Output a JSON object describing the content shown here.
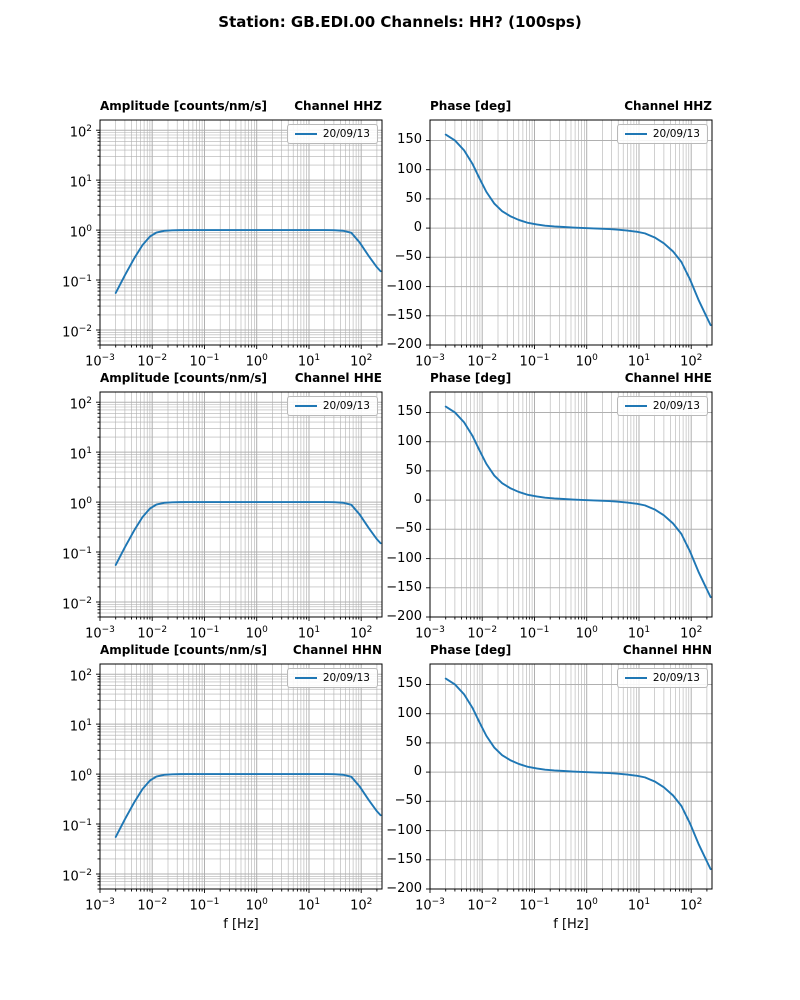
{
  "figure": {
    "title": "Station: GB.EDI.00 Channels: HH? (100sps)"
  },
  "style": {
    "line_color": "#1f77b4",
    "grid_color": "#b0b0b0",
    "spine_color": "#000000",
    "legend_border": "#b9b9b9",
    "background": "#ffffff"
  },
  "legend_label": "20/09/13",
  "xlabel": "f [Hz]",
  "channel_titles": [
    "Channel HHZ",
    "Channel HHE",
    "Channel HHN"
  ],
  "chart_data": {
    "type": "line",
    "layout": "3 rows (channels HHZ, HHE, HHN) x 2 columns (Amplitude log-log, Phase semilog-x); major+minor gridlines on; legend upper right in every panel",
    "channels": [
      "HHZ",
      "HHE",
      "HHN"
    ],
    "note": "All three channels show an identical instrument response curve labelled 20/09/13",
    "amplitude": {
      "title": "Amplitude [counts/nm/s]",
      "xscale": "log",
      "yscale": "log",
      "xlim": [
        0.001,
        250
      ],
      "ylim": [
        0.005,
        160
      ],
      "xtick_exponents": [
        -3,
        -2,
        -1,
        0,
        1,
        2
      ],
      "ytick_exponents": [
        2,
        1,
        0,
        -1,
        -2
      ]
    },
    "phase": {
      "title": "Phase [deg]",
      "xscale": "log",
      "yscale": "linear",
      "xlim": [
        0.001,
        250
      ],
      "ylim": [
        -200,
        185
      ],
      "xtick_exponents": [
        -3,
        -2,
        -1,
        0,
        1,
        2
      ],
      "yticks": [
        150,
        100,
        50,
        0,
        -50,
        -100,
        -150,
        -200
      ]
    },
    "series": {
      "legend": "20/09/13",
      "frequency_hz": [
        0.002,
        0.003,
        0.0045,
        0.0065,
        0.009,
        0.012,
        0.017,
        0.024,
        0.035,
        0.05,
        0.075,
        0.11,
        0.16,
        0.24,
        0.36,
        0.55,
        0.8,
        1.2,
        1.8,
        2.7,
        4,
        6,
        9,
        13,
        20,
        30,
        45,
        65,
        95,
        140,
        200,
        235
      ],
      "amplitude": [
        0.055,
        0.125,
        0.27,
        0.5,
        0.74,
        0.89,
        0.965,
        0.99,
        0.998,
        1.0,
        1.0,
        1.0,
        1.0,
        1.0,
        1.0,
        1.0,
        1.0,
        1.0,
        1.0,
        1.0,
        1.0,
        1.0,
        1.0,
        1.0,
        0.999,
        0.995,
        0.97,
        0.88,
        0.55,
        0.3,
        0.18,
        0.15
      ],
      "phase_deg": [
        160,
        150,
        133,
        110,
        84,
        62,
        42,
        29,
        20,
        14,
        9,
        6.2,
        4.2,
        2.8,
        1.9,
        1.0,
        0.3,
        -0.3,
        -0.9,
        -1.6,
        -2.6,
        -4.1,
        -6.2,
        -9,
        -16,
        -26,
        -40,
        -58,
        -88,
        -124,
        -153,
        -166
      ]
    }
  }
}
